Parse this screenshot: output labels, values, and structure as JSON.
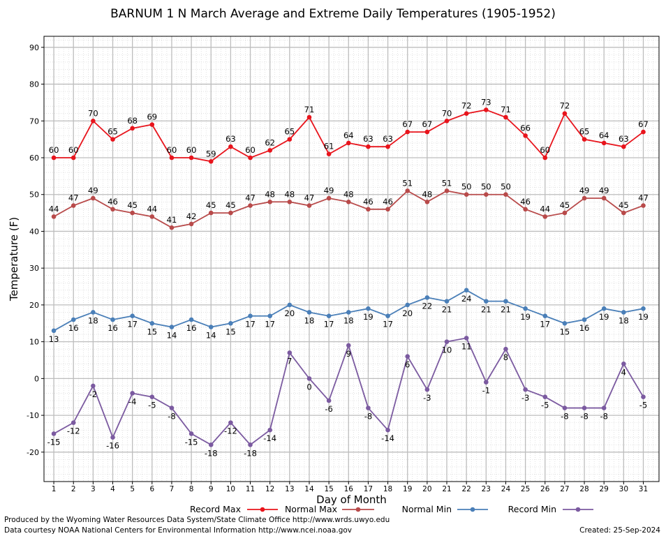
{
  "title": "BARNUM 1 N March Average and Extreme Daily Temperatures (1905-1952)",
  "credits": {
    "line1": "Produced by the Wyoming Water Resources Data System/State Climate Office http://www.wrds.uwyo.edu",
    "line2": "Data courtesy NOAA National Centers for Environmental Information http://www.ncei.noaa.gov",
    "created": "Created:  25-Sep-2024"
  },
  "colors": {
    "record_max": "#e8141c",
    "normal_max": "#b84a4a",
    "normal_min": "#4a7fb8",
    "record_min": "#7b5aa0",
    "grid_major": "#bdbdbd",
    "grid_minor": "#cfcfcf"
  },
  "chart_data": {
    "type": "line",
    "xlabel": "Day of Month",
    "ylabel": "Temperature (F)",
    "x": [
      1,
      2,
      3,
      4,
      5,
      6,
      7,
      8,
      9,
      10,
      11,
      12,
      13,
      14,
      15,
      16,
      17,
      18,
      19,
      20,
      21,
      22,
      23,
      24,
      25,
      26,
      27,
      28,
      29,
      30,
      31
    ],
    "xlim": [
      0.5,
      31.8
    ],
    "ylim": [
      -28,
      93
    ],
    "yticks": [
      -20,
      -10,
      0,
      10,
      20,
      30,
      40,
      50,
      60,
      70,
      80,
      90
    ],
    "grid": true,
    "legend_position": "bottom",
    "series": [
      {
        "key": "record_max",
        "name": "Record Max",
        "values": [
          60,
          60,
          70,
          65,
          68,
          69,
          60,
          60,
          59,
          63,
          60,
          62,
          65,
          71,
          61,
          64,
          63,
          63,
          67,
          67,
          70,
          72,
          73,
          71,
          66,
          60,
          72,
          65,
          64,
          63,
          67
        ]
      },
      {
        "key": "normal_max",
        "name": "Normal Max",
        "values": [
          44,
          47,
          49,
          46,
          45,
          44,
          41,
          42,
          45,
          45,
          47,
          48,
          48,
          47,
          49,
          48,
          46,
          46,
          51,
          48,
          51,
          50,
          50,
          50,
          46,
          44,
          45,
          49,
          49,
          45,
          47
        ]
      },
      {
        "key": "normal_min",
        "name": "Normal Min",
        "values": [
          13,
          16,
          18,
          16,
          17,
          15,
          14,
          16,
          14,
          15,
          17,
          17,
          20,
          18,
          17,
          18,
          19,
          17,
          20,
          22,
          21,
          24,
          21,
          21,
          19,
          17,
          15,
          16,
          19,
          18,
          19
        ]
      },
      {
        "key": "record_min",
        "name": "Record Min",
        "values": [
          -15,
          -12,
          -2,
          -16,
          -4,
          -5,
          -8,
          -15,
          -18,
          -12,
          -18,
          -14,
          7,
          0,
          -6,
          9,
          -8,
          -14,
          6,
          -3,
          10,
          11,
          -1,
          8,
          -3,
          -5,
          -8,
          -8,
          -8,
          4,
          -5
        ]
      }
    ]
  }
}
